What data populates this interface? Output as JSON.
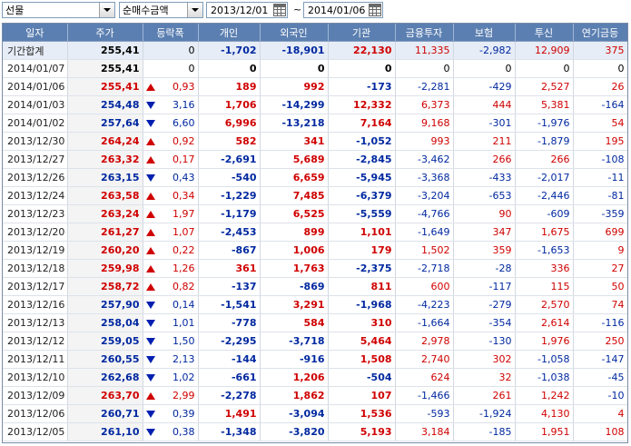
{
  "toolbar": {
    "market_select": "선물",
    "metric_select": "순매수금액",
    "start_date": "2013/12/01",
    "tilde": "~",
    "end_date": "2014/01/06"
  },
  "columns": [
    "일자",
    "주가",
    "등락폭",
    "개인",
    "외국인",
    "기관",
    "금융투자",
    "보험",
    "투신",
    "연기금등"
  ],
  "colors": {
    "up": "#d00000",
    "down": "#0028a0",
    "header_bg": "#5b7fb1"
  },
  "rows": [
    {
      "date": "기간합계",
      "price": "255,41",
      "dir": "",
      "chg": "0",
      "indiv": "-1,702",
      "foreign": "-18,901",
      "inst": "22,130",
      "fin": "11,335",
      "ins": "-2,982",
      "trust": "12,909",
      "pension": "375",
      "total": true
    },
    {
      "date": "2014/01/07",
      "price": "255,41",
      "dir": "",
      "chg": "0",
      "indiv": "0",
      "foreign": "0",
      "inst": "0",
      "fin": "0",
      "ins": "0",
      "trust": "0",
      "pension": "0"
    },
    {
      "date": "2014/01/06",
      "price": "255,41",
      "dir": "up",
      "chg": "0,93",
      "indiv": "189",
      "foreign": "992",
      "inst": "-173",
      "fin": "-2,281",
      "ins": "-429",
      "trust": "2,527",
      "pension": "26"
    },
    {
      "date": "2014/01/03",
      "price": "254,48",
      "dir": "down",
      "chg": "3,16",
      "indiv": "1,706",
      "foreign": "-14,299",
      "inst": "12,332",
      "fin": "6,373",
      "ins": "444",
      "trust": "5,381",
      "pension": "-164"
    },
    {
      "date": "2014/01/02",
      "price": "257,64",
      "dir": "down",
      "chg": "6,60",
      "indiv": "6,996",
      "foreign": "-13,218",
      "inst": "7,164",
      "fin": "9,168",
      "ins": "-301",
      "trust": "-1,976",
      "pension": "54"
    },
    {
      "date": "2013/12/30",
      "price": "264,24",
      "dir": "up",
      "chg": "0,92",
      "indiv": "582",
      "foreign": "341",
      "inst": "-1,052",
      "fin": "993",
      "ins": "211",
      "trust": "-1,879",
      "pension": "195"
    },
    {
      "date": "2013/12/27",
      "price": "263,32",
      "dir": "up",
      "chg": "0,17",
      "indiv": "-2,691",
      "foreign": "5,689",
      "inst": "-2,845",
      "fin": "-3,462",
      "ins": "266",
      "trust": "266",
      "pension": "-108"
    },
    {
      "date": "2013/12/26",
      "price": "263,15",
      "dir": "down",
      "chg": "0,43",
      "indiv": "-540",
      "foreign": "6,659",
      "inst": "-5,945",
      "fin": "-3,368",
      "ins": "-433",
      "trust": "-2,017",
      "pension": "-11"
    },
    {
      "date": "2013/12/24",
      "price": "263,58",
      "dir": "up",
      "chg": "0,34",
      "indiv": "-1,229",
      "foreign": "7,485",
      "inst": "-6,379",
      "fin": "-3,204",
      "ins": "-653",
      "trust": "-2,446",
      "pension": "-81"
    },
    {
      "date": "2013/12/23",
      "price": "263,24",
      "dir": "up",
      "chg": "1,97",
      "indiv": "-1,179",
      "foreign": "6,525",
      "inst": "-5,559",
      "fin": "-4,766",
      "ins": "90",
      "trust": "-609",
      "pension": "-359"
    },
    {
      "date": "2013/12/20",
      "price": "261,27",
      "dir": "up",
      "chg": "1,07",
      "indiv": "-2,453",
      "foreign": "899",
      "inst": "1,101",
      "fin": "-1,649",
      "ins": "347",
      "trust": "1,675",
      "pension": "699"
    },
    {
      "date": "2013/12/19",
      "price": "260,20",
      "dir": "up",
      "chg": "0,22",
      "indiv": "-867",
      "foreign": "1,006",
      "inst": "179",
      "fin": "1,502",
      "ins": "359",
      "trust": "-1,653",
      "pension": "9"
    },
    {
      "date": "2013/12/18",
      "price": "259,98",
      "dir": "up",
      "chg": "1,26",
      "indiv": "361",
      "foreign": "1,763",
      "inst": "-2,375",
      "fin": "-2,718",
      "ins": "-28",
      "trust": "336",
      "pension": "27"
    },
    {
      "date": "2013/12/17",
      "price": "258,72",
      "dir": "up",
      "chg": "0,82",
      "indiv": "-137",
      "foreign": "-869",
      "inst": "811",
      "fin": "600",
      "ins": "-117",
      "trust": "115",
      "pension": "50"
    },
    {
      "date": "2013/12/16",
      "price": "257,90",
      "dir": "down",
      "chg": "0,14",
      "indiv": "-1,541",
      "foreign": "3,291",
      "inst": "-1,968",
      "fin": "-4,223",
      "ins": "-279",
      "trust": "2,570",
      "pension": "74"
    },
    {
      "date": "2013/12/13",
      "price": "258,04",
      "dir": "down",
      "chg": "1,01",
      "indiv": "-778",
      "foreign": "584",
      "inst": "310",
      "fin": "-1,664",
      "ins": "-354",
      "trust": "2,614",
      "pension": "-116"
    },
    {
      "date": "2013/12/12",
      "price": "259,05",
      "dir": "down",
      "chg": "1,50",
      "indiv": "-2,295",
      "foreign": "-3,718",
      "inst": "5,464",
      "fin": "2,978",
      "ins": "-130",
      "trust": "1,976",
      "pension": "250"
    },
    {
      "date": "2013/12/11",
      "price": "260,55",
      "dir": "down",
      "chg": "2,13",
      "indiv": "-144",
      "foreign": "-916",
      "inst": "1,508",
      "fin": "2,740",
      "ins": "302",
      "trust": "-1,058",
      "pension": "-147"
    },
    {
      "date": "2013/12/10",
      "price": "262,68",
      "dir": "down",
      "chg": "1,02",
      "indiv": "-661",
      "foreign": "1,206",
      "inst": "-504",
      "fin": "624",
      "ins": "32",
      "trust": "-1,038",
      "pension": "-45"
    },
    {
      "date": "2013/12/09",
      "price": "263,70",
      "dir": "up",
      "chg": "2,99",
      "indiv": "-2,278",
      "foreign": "1,862",
      "inst": "107",
      "fin": "-1,466",
      "ins": "261",
      "trust": "1,242",
      "pension": "-10"
    },
    {
      "date": "2013/12/06",
      "price": "260,71",
      "dir": "down",
      "chg": "0,39",
      "indiv": "1,491",
      "foreign": "-3,094",
      "inst": "1,536",
      "fin": "-593",
      "ins": "-1,924",
      "trust": "4,130",
      "pension": "4"
    },
    {
      "date": "2013/12/05",
      "price": "261,10",
      "dir": "down",
      "chg": "0,38",
      "indiv": "-1,348",
      "foreign": "-3,820",
      "inst": "5,193",
      "fin": "3,184",
      "ins": "-185",
      "trust": "1,951",
      "pension": "108"
    }
  ]
}
